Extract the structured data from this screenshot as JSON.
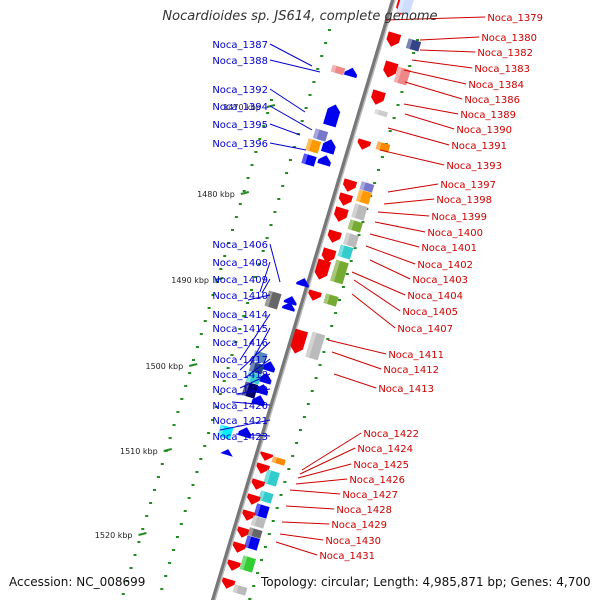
{
  "title": "Nocardioides sp. JS614, complete genome",
  "footer": {
    "accession": "Accession: NC_008699",
    "summary": "Topology: circular; Length: 4,985,871 bp; Genes: 4,700"
  },
  "colors": {
    "left_label": "#0000cc",
    "right_label": "#cc0000",
    "backbone": "#888888",
    "tick": "#228b22",
    "forward_gene": "#0000ee",
    "reverse_gene": "#ee0000"
  },
  "scale_ticks": [
    "1470 kbp",
    "1480 kbp",
    "1490 kbp",
    "1500 kbp",
    "1510 kbp",
    "1520 kbp"
  ],
  "left_labels": [
    "Noca_1387",
    "Noca_1388",
    "Noca_1392",
    "Noca_1394",
    "Noca_1395",
    "Noca_1396",
    "Noca_1406",
    "Noca_1408",
    "Noca_1409",
    "Noca_1410",
    "Noca_1414",
    "Noca_1415",
    "Noca_1416",
    "Noca_1417",
    "Noca_1418",
    "Noca_1419",
    "Noca_1420",
    "Noca_1421",
    "Noca_1423"
  ],
  "right_labels": [
    "Noca_1379",
    "Noca_1380",
    "Noca_1382",
    "Noca_1383",
    "Noca_1384",
    "Noca_1386",
    "Noca_1389",
    "Noca_1390",
    "Noca_1391",
    "Noca_1393",
    "Noca_1397",
    "Noca_1398",
    "Noca_1399",
    "Noca_1400",
    "Noca_1401",
    "Noca_1402",
    "Noca_1403",
    "Noca_1404",
    "Noca_1405",
    "Noca_1407",
    "Noca_1411",
    "Noca_1412",
    "Noca_1413",
    "Noca_1422",
    "Noca_1424",
    "Noca_1425",
    "Noca_1426",
    "Noca_1427",
    "Noca_1428",
    "Noca_1429",
    "Noca_1430",
    "Noca_1431"
  ]
}
